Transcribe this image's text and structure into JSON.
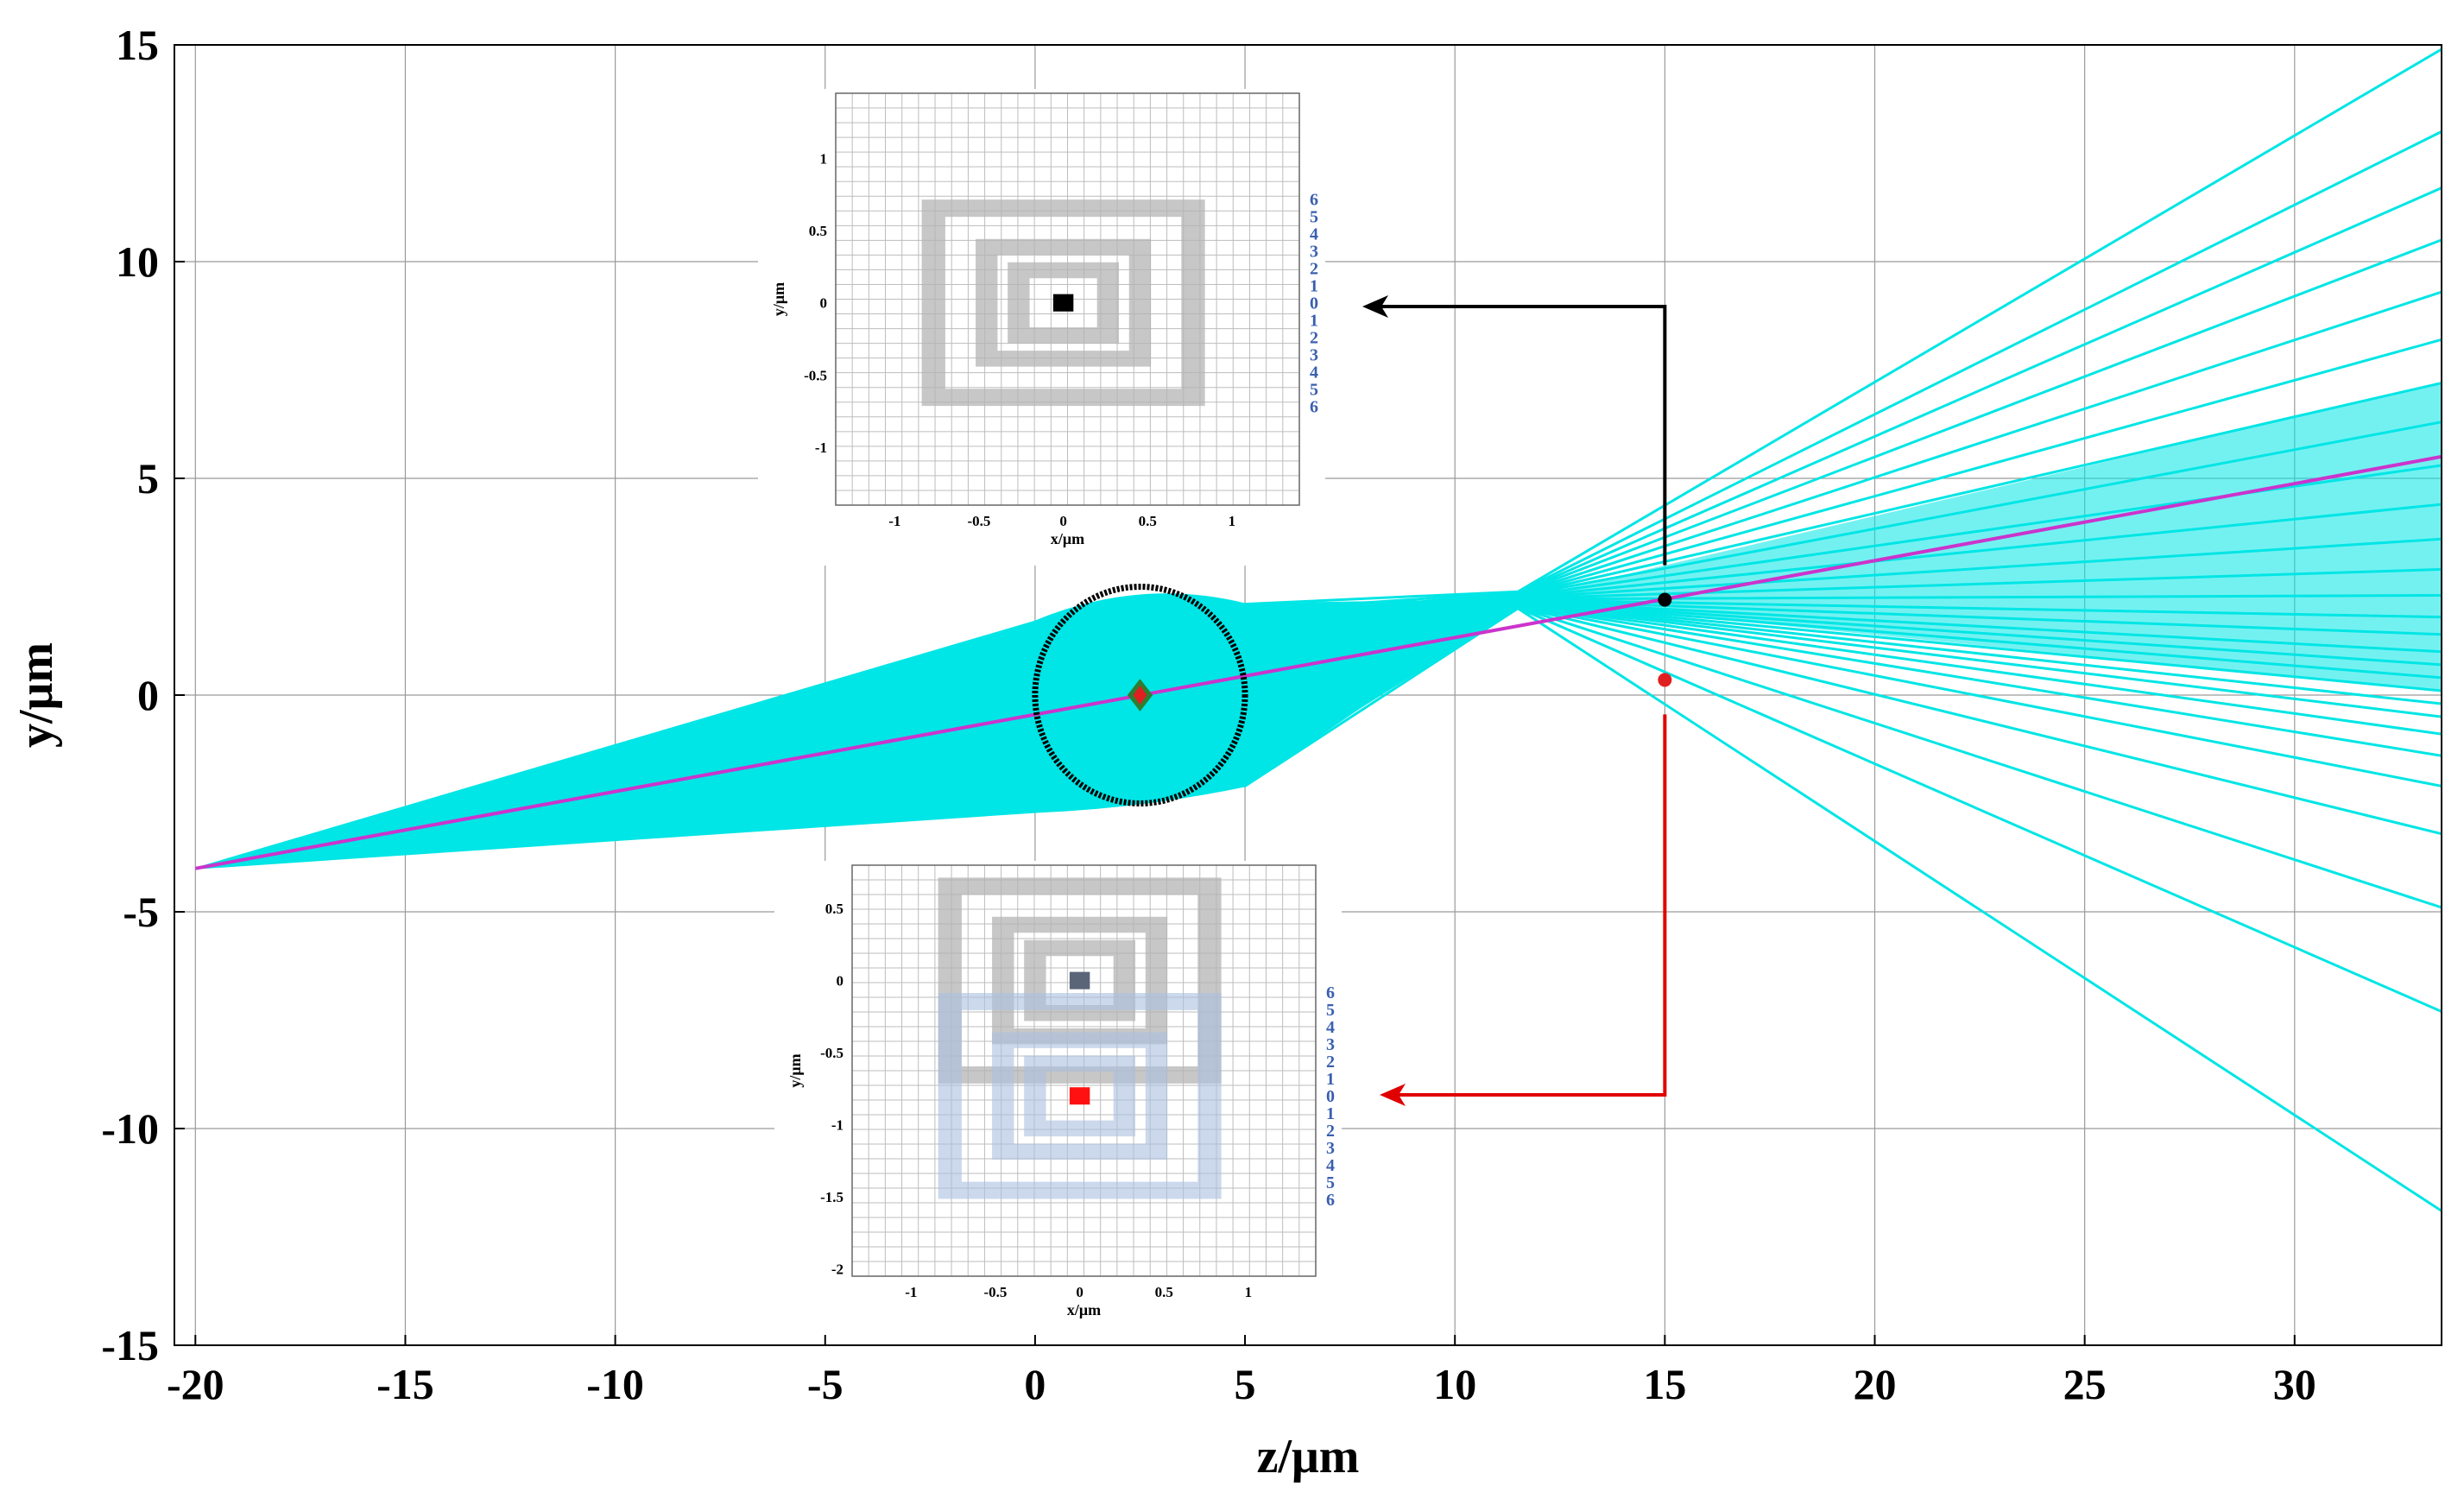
{
  "chart_data": {
    "type": "line",
    "title": "",
    "xlabel": "z/μm",
    "ylabel": "y/μm",
    "xlim": [
      -20.5,
      33.5
    ],
    "ylim": [
      -15,
      15
    ],
    "xticks": [
      "-20",
      "-15",
      "-10",
      "-5",
      "0",
      "5",
      "10",
      "15",
      "20",
      "25",
      "30"
    ],
    "yticks": [
      "15",
      "10",
      "5",
      "0",
      "-5",
      "-10",
      "-15"
    ],
    "grid": true,
    "colors": {
      "rays": "#00e5e5",
      "chief_ray": "#cc33cc",
      "sphere": "#000000",
      "upper_arrow": "#000000",
      "lower_arrow": "#e00000"
    },
    "ray_fan": {
      "source": [
        -20,
        -4
      ],
      "fan_y_at_z0": [
        -2.7,
        1.7
      ],
      "fan_y_at_z5": [
        -2.1,
        2.1
      ],
      "crossover": [
        11.5,
        2.2
      ],
      "end_y_at_z33_5": [
        -11.9,
        -7.3,
        -4.9,
        -3.2,
        -2.1,
        -1.4,
        -0.9,
        -0.5,
        -0.2,
        0.1,
        0.4,
        0.7,
        1.0,
        1.4,
        1.8,
        2.3,
        2.9,
        3.6,
        4.4,
        5.3,
        6.3,
        7.2,
        8.2,
        9.3,
        10.5,
        11.7,
        13.0,
        14.9
      ]
    },
    "chief_ray": {
      "x": [
        -20,
        33.5
      ],
      "y": [
        -4,
        5.5
      ]
    },
    "sphere": {
      "center": [
        2.5,
        0
      ],
      "radius": 2.5
    },
    "markers": [
      {
        "name": "focus-marker",
        "x": 2.5,
        "y": 0,
        "color": "#e02020"
      },
      {
        "name": "upper-image-point",
        "x": 15,
        "y": 2.2,
        "color": "#000000"
      },
      {
        "name": "lower-image-point",
        "x": 15,
        "y": 0.35,
        "color": "#e02020"
      }
    ],
    "insets": [
      {
        "name": "upper-inset",
        "xlabel": "x/μm",
        "ylabel": "y/μm",
        "xlim": [
          -1.35,
          1.4
        ],
        "ylim": [
          -1.4,
          1.45
        ],
        "xticks": [
          "-1",
          "-0.5",
          "0",
          "0.5",
          "1"
        ],
        "yticks": [
          "1",
          "0.5",
          "0",
          "-0.5",
          "-1"
        ],
        "ring_labels": [
          "6",
          "5",
          "4",
          "3",
          "2",
          "1",
          "0",
          "1",
          "2",
          "3",
          "4",
          "5",
          "6"
        ],
        "pattern_center": [
          0,
          0
        ],
        "center_square_color": "#000000"
      },
      {
        "name": "lower-inset",
        "xlabel": "x/μm",
        "ylabel": "y/μm",
        "xlim": [
          -1.35,
          1.4
        ],
        "ylim": [
          -2.05,
          0.8
        ],
        "xticks": [
          "-1",
          "-0.5",
          "0",
          "0.5",
          "1"
        ],
        "yticks": [
          "0.5",
          "0",
          "-0.5",
          "-1",
          "-1.5",
          "-2"
        ],
        "ring_labels": [
          "6",
          "5",
          "4",
          "3",
          "2",
          "1",
          "0",
          "1",
          "2",
          "3",
          "4",
          "5",
          "6"
        ],
        "pattern_center": [
          0,
          0
        ],
        "center_square_color": "#5a6577",
        "shifted_pattern_center": [
          0,
          -0.8
        ],
        "shifted_center_square_color": "#ff1111"
      }
    ]
  }
}
